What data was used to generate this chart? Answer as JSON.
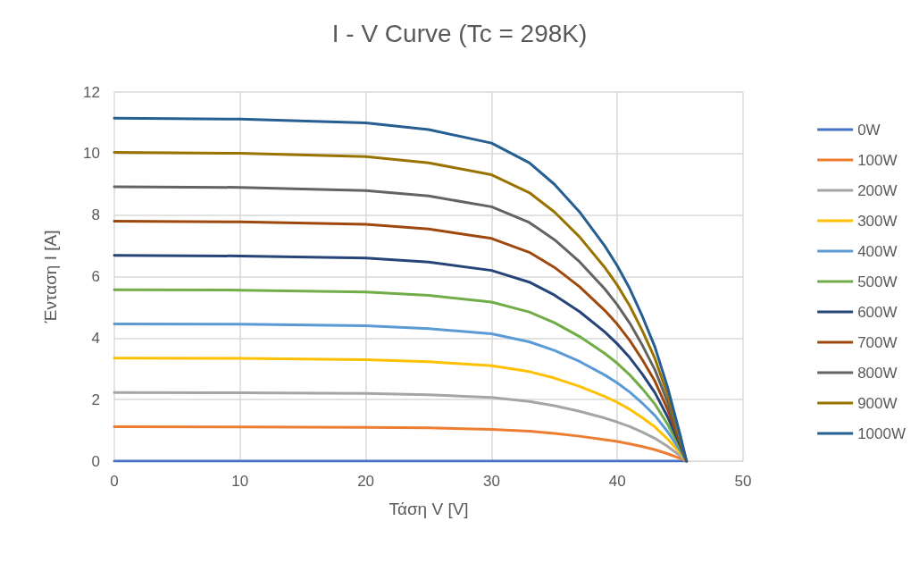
{
  "chart_data": {
    "type": "line",
    "title": "I - V Curve (Tc = 298K)",
    "xlabel": "Τάση V [V]",
    "ylabel": "Ένταση I [A]",
    "x": [
      0,
      10,
      20,
      25,
      30,
      33,
      35,
      37,
      39,
      40,
      41,
      42,
      43,
      44,
      45,
      45.5
    ],
    "xlim": [
      0,
      50
    ],
    "xticks": [
      0,
      10,
      20,
      30,
      40,
      50
    ],
    "ylim": [
      0,
      12
    ],
    "yticks": [
      0,
      2,
      4,
      6,
      8,
      10,
      12
    ],
    "grid": true,
    "legend": "right",
    "marker": "none",
    "line_style": "solid",
    "series": [
      {
        "name": "0W",
        "color": "#4472c4",
        "values": [
          0,
          0,
          0,
          0,
          0,
          0,
          0,
          0,
          0,
          0,
          0,
          0,
          0,
          0,
          0,
          0
        ]
      },
      {
        "name": "100W",
        "color": "#ed7d31",
        "values": [
          1.12,
          1.11,
          1.1,
          1.08,
          1.03,
          0.97,
          0.9,
          0.81,
          0.7,
          0.64,
          0.56,
          0.47,
          0.37,
          0.24,
          0.09,
          0
        ]
      },
      {
        "name": "200W",
        "color": "#a5a5a5",
        "values": [
          2.23,
          2.22,
          2.2,
          2.16,
          2.07,
          1.94,
          1.8,
          1.62,
          1.4,
          1.27,
          1.12,
          0.94,
          0.74,
          0.48,
          0.17,
          0
        ]
      },
      {
        "name": "300W",
        "color": "#ffc000",
        "values": [
          3.35,
          3.34,
          3.3,
          3.23,
          3.1,
          2.91,
          2.7,
          2.43,
          2.1,
          1.91,
          1.68,
          1.41,
          1.11,
          0.72,
          0.26,
          0
        ]
      },
      {
        "name": "400W",
        "color": "#5b9bd5",
        "values": [
          4.46,
          4.45,
          4.4,
          4.31,
          4.14,
          3.88,
          3.6,
          3.24,
          2.8,
          2.54,
          2.24,
          1.88,
          1.48,
          0.96,
          0.34,
          0
        ]
      },
      {
        "name": "500W",
        "color": "#70ad47",
        "values": [
          5.57,
          5.56,
          5.5,
          5.39,
          5.17,
          4.85,
          4.5,
          4.05,
          3.5,
          3.18,
          2.8,
          2.35,
          1.85,
          1.2,
          0.43,
          0
        ]
      },
      {
        "name": "600W",
        "color": "#264478",
        "values": [
          6.69,
          6.67,
          6.6,
          6.47,
          6.2,
          5.82,
          5.4,
          4.86,
          4.2,
          3.81,
          3.36,
          2.82,
          2.22,
          1.44,
          0.51,
          0
        ]
      },
      {
        "name": "700W",
        "color": "#9e480e",
        "values": [
          7.8,
          7.78,
          7.7,
          7.55,
          7.24,
          6.79,
          6.3,
          5.67,
          4.9,
          4.45,
          3.92,
          3.29,
          2.59,
          1.68,
          0.6,
          0
        ]
      },
      {
        "name": "800W",
        "color": "#636363",
        "values": [
          8.92,
          8.9,
          8.8,
          8.62,
          8.27,
          7.76,
          7.2,
          6.48,
          5.6,
          5.08,
          4.48,
          3.76,
          2.96,
          1.92,
          0.68,
          0
        ]
      },
      {
        "name": "900W",
        "color": "#997300",
        "values": [
          10.04,
          10.01,
          9.9,
          9.7,
          9.31,
          8.73,
          8.1,
          7.29,
          6.3,
          5.72,
          5.04,
          4.23,
          3.33,
          2.16,
          0.77,
          0
        ]
      },
      {
        "name": "1000W",
        "color": "#255e91",
        "values": [
          11.15,
          11.12,
          11.0,
          10.78,
          10.34,
          9.7,
          9.0,
          8.1,
          7.0,
          6.35,
          5.6,
          4.7,
          3.7,
          2.4,
          0.85,
          0
        ]
      }
    ]
  }
}
